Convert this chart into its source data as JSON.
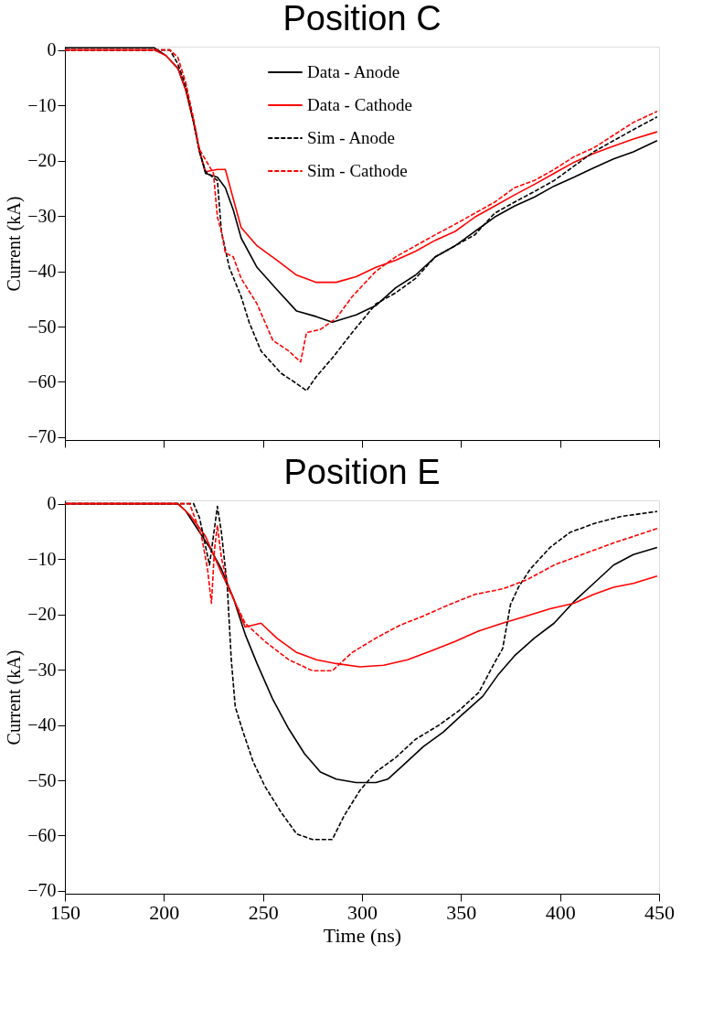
{
  "chart_data": [
    {
      "type": "line",
      "title": "Position C",
      "ylabel": "Current (kA)",
      "xlim": [
        150,
        450
      ],
      "ylim": [
        -70.5,
        0.6
      ],
      "xticks": [
        150,
        200,
        250,
        300,
        350,
        400,
        450
      ],
      "yticks": [
        0,
        -10,
        -20,
        -30,
        -40,
        -50,
        -60,
        -70
      ],
      "tick_labels": "y",
      "legend": "top",
      "grid": false,
      "series": [
        {
          "name": "Data - Anode",
          "color": "#000000",
          "line_style": "solid",
          "x": [
            150,
            187,
            195,
            201,
            207,
            211,
            215,
            218,
            221,
            227,
            231,
            235,
            239,
            247,
            257,
            267,
            277,
            285,
            297,
            307,
            317,
            327,
            337,
            347,
            357,
            367,
            377,
            387,
            397,
            407,
            417,
            427,
            437,
            449
          ],
          "values": [
            0.4,
            0.4,
            0.4,
            -1,
            -3.3,
            -7.2,
            -13.1,
            -18.4,
            -22.3,
            -23,
            -24.9,
            -28.9,
            -34,
            -39.3,
            -43.3,
            -47.2,
            -48.2,
            -49.2,
            -47.9,
            -46.2,
            -43,
            -40.7,
            -37.4,
            -35.4,
            -32.8,
            -30.2,
            -28.2,
            -26.6,
            -24.6,
            -23,
            -21.3,
            -19.7,
            -18.4,
            -16.4
          ]
        },
        {
          "name": "Data - Cathode",
          "color": "#ff0000",
          "line_style": "solid",
          "x": [
            150,
            187,
            195,
            201,
            207,
            211,
            215,
            218,
            221,
            227,
            231,
            235,
            239,
            247,
            257,
            267,
            277,
            287,
            297,
            307,
            317,
            327,
            337,
            347,
            357,
            367,
            377,
            387,
            397,
            407,
            417,
            427,
            437,
            449
          ],
          "values": [
            0,
            0,
            0,
            -1,
            -3.3,
            -7.2,
            -13.1,
            -18.4,
            -22,
            -21.6,
            -21.6,
            -26.9,
            -32.1,
            -35.4,
            -38,
            -40.7,
            -42,
            -42,
            -41,
            -39.3,
            -38,
            -36.4,
            -34.4,
            -32.8,
            -30.2,
            -28.2,
            -26.2,
            -24.3,
            -22.3,
            -20.3,
            -18.7,
            -17.4,
            -16.1,
            -14.8
          ]
        },
        {
          "name": "Sim - Anode",
          "color": "#000000",
          "line_style": "dashed",
          "x": [
            150,
            203,
            207,
            211,
            215,
            218,
            221,
            227,
            229,
            233,
            239,
            243,
            249,
            259,
            267,
            272,
            277,
            285,
            295,
            307,
            317,
            327,
            337,
            347,
            357,
            367,
            377,
            387,
            397,
            407,
            417,
            427,
            437,
            449
          ],
          "values": [
            0,
            0,
            -2.5,
            -6.5,
            -13,
            -18.4,
            -22,
            -23.6,
            -32.8,
            -39.3,
            -44.6,
            -49.2,
            -54.4,
            -58.4,
            -60.3,
            -61.6,
            -59,
            -55.7,
            -51.1,
            -45.9,
            -43.9,
            -41.3,
            -37.4,
            -35.4,
            -33.4,
            -29.5,
            -27.5,
            -25.6,
            -23.6,
            -21,
            -18.4,
            -16.4,
            -14.4,
            -12.1
          ]
        },
        {
          "name": "Sim - Cathode",
          "color": "#ff0000",
          "line_style": "dashed",
          "x": [
            150,
            203,
            207,
            211,
            215,
            218,
            225,
            227,
            229,
            231,
            235,
            239,
            247,
            255,
            263,
            269,
            272,
            279,
            287,
            295,
            307,
            317,
            327,
            337,
            347,
            357,
            367,
            377,
            387,
            397,
            407,
            417,
            427,
            437,
            449
          ],
          "values": [
            0,
            0,
            -1.3,
            -5.9,
            -12.5,
            -18,
            -22.3,
            -30.2,
            -32.8,
            -36.7,
            -37.4,
            -41.3,
            -45.9,
            -52.5,
            -54.4,
            -56.4,
            -51.1,
            -50.5,
            -48.5,
            -44.6,
            -40,
            -37.4,
            -35.4,
            -33.4,
            -31.5,
            -29.5,
            -27.5,
            -24.9,
            -23.6,
            -21.6,
            -19.3,
            -17.7,
            -15.4,
            -13.1,
            -11.1
          ]
        }
      ]
    },
    {
      "type": "line",
      "title": "Position E",
      "xlabel": "Time (ns)",
      "ylabel": "Current (kA)",
      "xlim": [
        150,
        450
      ],
      "ylim": [
        -70.5,
        0.6
      ],
      "xticks": [
        150,
        200,
        250,
        300,
        350,
        400,
        450
      ],
      "yticks": [
        0,
        -10,
        -20,
        -30,
        -40,
        -50,
        -60,
        -70
      ],
      "legend": "top",
      "grid": false,
      "series": [
        {
          "name": "Data - Anode",
          "color": "#000000",
          "line_style": "solid",
          "x": [
            150,
            207,
            211,
            217,
            223,
            229,
            235,
            241,
            247,
            255,
            263,
            271,
            279,
            287,
            297,
            307,
            313,
            321,
            331,
            341,
            351,
            361,
            369,
            377,
            387,
            397,
            407,
            417,
            427,
            437,
            449
          ],
          "values": [
            0,
            0,
            -1.3,
            -4.6,
            -7.9,
            -11.8,
            -17,
            -23.6,
            -28.9,
            -35.4,
            -40.7,
            -45.2,
            -48.5,
            -49.8,
            -50.4,
            -50.4,
            -49.8,
            -47.2,
            -43.9,
            -41.3,
            -38,
            -34.8,
            -30.8,
            -27.5,
            -24.3,
            -21.6,
            -17.7,
            -14.4,
            -11.1,
            -9.2,
            -7.9
          ]
        },
        {
          "name": "Data - Cathode",
          "color": "#ff0000",
          "line_style": "solid",
          "x": [
            150,
            207,
            213,
            221,
            229,
            235,
            241,
            249,
            257,
            267,
            277,
            287,
            299,
            311,
            323,
            335,
            347,
            359,
            371,
            383,
            395,
            407,
            417,
            427,
            437,
            449
          ],
          "values": [
            0,
            0,
            -2,
            -5.9,
            -12.5,
            -17,
            -22.3,
            -21.6,
            -24.3,
            -26.9,
            -28.2,
            -28.9,
            -29.5,
            -29.2,
            -28.2,
            -26.6,
            -24.9,
            -23,
            -21.6,
            -20.3,
            -19,
            -18,
            -16.4,
            -15.1,
            -14.4,
            -13.1
          ]
        },
        {
          "name": "Sim - Anode",
          "color": "#000000",
          "line_style": "dashed",
          "x": [
            150,
            215,
            218,
            223,
            227,
            229,
            232,
            234,
            236,
            240,
            245,
            251,
            259,
            267,
            275,
            285,
            291,
            299,
            307,
            317,
            327,
            339,
            349,
            359,
            367,
            371,
            375,
            379,
            385,
            395,
            405,
            417,
            431,
            449
          ],
          "values": [
            0,
            0,
            -2.6,
            -11.1,
            -0.5,
            -5.1,
            -15,
            -28.2,
            -36.7,
            -41.3,
            -46.6,
            -51.1,
            -55.7,
            -59.7,
            -60.7,
            -60.7,
            -56.4,
            -51.8,
            -48.5,
            -45.9,
            -42.6,
            -40,
            -37.4,
            -34.1,
            -28.7,
            -26.2,
            -18.2,
            -15.1,
            -11.8,
            -7.9,
            -5.2,
            -3.6,
            -2.3,
            -1.4
          ]
        },
        {
          "name": "Sim - Cathode",
          "color": "#ff0000",
          "line_style": "dashed",
          "x": [
            150,
            213,
            219,
            222,
            224,
            225.5,
            227,
            229,
            233,
            241,
            251,
            263,
            275,
            285,
            295,
            307,
            319,
            331,
            343,
            357,
            371,
            383,
            397,
            411,
            427,
            449
          ],
          "values": [
            0,
            0,
            -5.9,
            -11.8,
            -18,
            -8.4,
            -3.9,
            -9.8,
            -15.7,
            -21.6,
            -24.9,
            -28.2,
            -30.2,
            -30.2,
            -26.9,
            -24.3,
            -22,
            -20.3,
            -18.4,
            -16.4,
            -15.4,
            -13.8,
            -11.1,
            -9.2,
            -7.1,
            -4.5
          ]
        }
      ]
    }
  ]
}
